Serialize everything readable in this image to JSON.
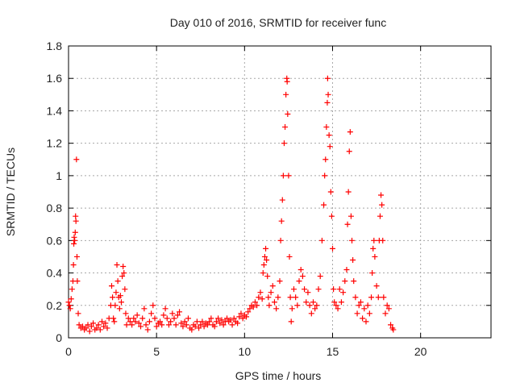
{
  "chart_data": {
    "type": "scatter",
    "title": "Day 010 of 2016, SRMTID for receiver func",
    "xlabel": "GPS time / hours",
    "ylabel": "SRMTID / TECUs",
    "xlim": [
      0,
      24
    ],
    "ylim": [
      0,
      1.8
    ],
    "xticks": [
      0,
      5,
      10,
      15,
      20
    ],
    "xtick_labels": [
      "0",
      "5",
      "10",
      "15",
      "20"
    ],
    "yticks": [
      0,
      0.2,
      0.4,
      0.6,
      0.8,
      1,
      1.2,
      1.4,
      1.6,
      1.8
    ],
    "ytick_labels": [
      "0",
      "0.2",
      "0.4",
      "0.6",
      "0.8",
      "1",
      "1.2",
      "1.4",
      "1.6",
      "1.8"
    ],
    "grid": true,
    "marker": "+",
    "color": "#ff0000",
    "series": [
      {
        "name": "SRMTID",
        "points": [
          [
            0.0,
            0.22
          ],
          [
            0.05,
            0.2
          ],
          [
            0.1,
            0.18
          ],
          [
            0.15,
            0.24
          ],
          [
            0.2,
            0.3
          ],
          [
            0.25,
            0.35
          ],
          [
            0.28,
            0.45
          ],
          [
            0.3,
            0.58
          ],
          [
            0.32,
            0.62
          ],
          [
            0.35,
            0.6
          ],
          [
            0.38,
            0.65
          ],
          [
            0.4,
            0.75
          ],
          [
            0.42,
            0.72
          ],
          [
            0.45,
            1.1
          ],
          [
            0.48,
            0.5
          ],
          [
            0.5,
            0.35
          ],
          [
            0.55,
            0.15
          ],
          [
            0.6,
            0.08
          ],
          [
            0.7,
            0.06
          ],
          [
            0.8,
            0.07
          ],
          [
            0.9,
            0.05
          ],
          [
            1.0,
            0.06
          ],
          [
            1.1,
            0.08
          ],
          [
            1.2,
            0.04
          ],
          [
            1.3,
            0.07
          ],
          [
            1.4,
            0.09
          ],
          [
            1.5,
            0.05
          ],
          [
            1.6,
            0.06
          ],
          [
            1.7,
            0.08
          ],
          [
            1.8,
            0.05
          ],
          [
            1.9,
            0.1
          ],
          [
            2.0,
            0.07
          ],
          [
            2.1,
            0.09
          ],
          [
            2.2,
            0.06
          ],
          [
            2.3,
            0.12
          ],
          [
            2.4,
            0.2
          ],
          [
            2.45,
            0.32
          ],
          [
            2.5,
            0.25
          ],
          [
            2.55,
            0.12
          ],
          [
            2.6,
            0.1
          ],
          [
            2.65,
            0.2
          ],
          [
            2.7,
            0.28
          ],
          [
            2.75,
            0.45
          ],
          [
            2.8,
            0.35
          ],
          [
            2.85,
            0.25
          ],
          [
            2.9,
            0.18
          ],
          [
            2.95,
            0.26
          ],
          [
            3.0,
            0.22
          ],
          [
            3.05,
            0.38
          ],
          [
            3.1,
            0.44
          ],
          [
            3.15,
            0.4
          ],
          [
            3.2,
            0.3
          ],
          [
            3.25,
            0.15
          ],
          [
            3.3,
            0.08
          ],
          [
            3.4,
            0.12
          ],
          [
            3.5,
            0.1
          ],
          [
            3.6,
            0.08
          ],
          [
            3.7,
            0.12
          ],
          [
            3.8,
            0.1
          ],
          [
            3.9,
            0.14
          ],
          [
            4.0,
            0.09
          ],
          [
            4.1,
            0.07
          ],
          [
            4.2,
            0.12
          ],
          [
            4.3,
            0.18
          ],
          [
            4.4,
            0.08
          ],
          [
            4.5,
            0.05
          ],
          [
            4.6,
            0.1
          ],
          [
            4.7,
            0.15
          ],
          [
            4.8,
            0.2
          ],
          [
            4.9,
            0.12
          ],
          [
            5.0,
            0.07
          ],
          [
            5.1,
            0.09
          ],
          [
            5.2,
            0.1
          ],
          [
            5.3,
            0.08
          ],
          [
            5.4,
            0.14
          ],
          [
            5.5,
            0.18
          ],
          [
            5.6,
            0.12
          ],
          [
            5.7,
            0.08
          ],
          [
            5.8,
            0.1
          ],
          [
            5.9,
            0.15
          ],
          [
            6.0,
            0.12
          ],
          [
            6.1,
            0.08
          ],
          [
            6.2,
            0.14
          ],
          [
            6.3,
            0.16
          ],
          [
            6.4,
            0.09
          ],
          [
            6.5,
            0.07
          ],
          [
            6.6,
            0.1
          ],
          [
            6.7,
            0.08
          ],
          [
            6.8,
            0.12
          ],
          [
            6.9,
            0.06
          ],
          [
            7.0,
            0.05
          ],
          [
            7.1,
            0.08
          ],
          [
            7.2,
            0.07
          ],
          [
            7.3,
            0.1
          ],
          [
            7.4,
            0.06
          ],
          [
            7.5,
            0.08
          ],
          [
            7.6,
            0.1
          ],
          [
            7.7,
            0.07
          ],
          [
            7.8,
            0.09
          ],
          [
            7.9,
            0.08
          ],
          [
            8.0,
            0.1
          ],
          [
            8.1,
            0.12
          ],
          [
            8.2,
            0.08
          ],
          [
            8.3,
            0.07
          ],
          [
            8.4,
            0.1
          ],
          [
            8.5,
            0.12
          ],
          [
            8.6,
            0.09
          ],
          [
            8.7,
            0.11
          ],
          [
            8.8,
            0.08
          ],
          [
            8.9,
            0.1
          ],
          [
            9.0,
            0.12
          ],
          [
            9.1,
            0.1
          ],
          [
            9.2,
            0.11
          ],
          [
            9.3,
            0.08
          ],
          [
            9.4,
            0.12
          ],
          [
            9.5,
            0.1
          ],
          [
            9.6,
            0.09
          ],
          [
            9.7,
            0.13
          ],
          [
            9.8,
            0.15
          ],
          [
            9.9,
            0.12
          ],
          [
            10.0,
            0.14
          ],
          [
            10.1,
            0.13
          ],
          [
            10.2,
            0.16
          ],
          [
            10.3,
            0.18
          ],
          [
            10.4,
            0.2
          ],
          [
            10.5,
            0.19
          ],
          [
            10.6,
            0.22
          ],
          [
            10.7,
            0.2
          ],
          [
            10.8,
            0.25
          ],
          [
            10.9,
            0.28
          ],
          [
            11.0,
            0.24
          ],
          [
            11.05,
            0.4
          ],
          [
            11.1,
            0.45
          ],
          [
            11.15,
            0.5
          ],
          [
            11.2,
            0.55
          ],
          [
            11.25,
            0.48
          ],
          [
            11.3,
            0.38
          ],
          [
            11.35,
            0.25
          ],
          [
            11.4,
            0.2
          ],
          [
            11.5,
            0.28
          ],
          [
            11.6,
            0.32
          ],
          [
            11.7,
            0.22
          ],
          [
            11.8,
            0.18
          ],
          [
            11.9,
            0.25
          ],
          [
            12.0,
            0.35
          ],
          [
            12.05,
            0.6
          ],
          [
            12.1,
            0.72
          ],
          [
            12.15,
            0.85
          ],
          [
            12.2,
            1.0
          ],
          [
            12.25,
            1.2
          ],
          [
            12.3,
            1.3
          ],
          [
            12.35,
            1.5
          ],
          [
            12.4,
            1.6
          ],
          [
            12.42,
            1.58
          ],
          [
            12.45,
            1.38
          ],
          [
            12.5,
            1.0
          ],
          [
            12.55,
            0.5
          ],
          [
            12.6,
            0.25
          ],
          [
            12.65,
            0.1
          ],
          [
            12.7,
            0.18
          ],
          [
            12.8,
            0.3
          ],
          [
            12.9,
            0.25
          ],
          [
            13.0,
            0.2
          ],
          [
            13.1,
            0.35
          ],
          [
            13.2,
            0.42
          ],
          [
            13.3,
            0.38
          ],
          [
            13.4,
            0.3
          ],
          [
            13.5,
            0.22
          ],
          [
            13.6,
            0.28
          ],
          [
            13.7,
            0.2
          ],
          [
            13.8,
            0.15
          ],
          [
            13.9,
            0.22
          ],
          [
            14.0,
            0.18
          ],
          [
            14.1,
            0.2
          ],
          [
            14.2,
            0.3
          ],
          [
            14.3,
            0.38
          ],
          [
            14.4,
            0.6
          ],
          [
            14.5,
            0.82
          ],
          [
            14.55,
            1.0
          ],
          [
            14.6,
            1.1
          ],
          [
            14.65,
            1.3
          ],
          [
            14.7,
            1.45
          ],
          [
            14.72,
            1.6
          ],
          [
            14.75,
            1.5
          ],
          [
            14.8,
            1.25
          ],
          [
            14.85,
            1.18
          ],
          [
            14.9,
            0.9
          ],
          [
            14.95,
            0.75
          ],
          [
            15.0,
            0.55
          ],
          [
            15.05,
            0.3
          ],
          [
            15.1,
            0.22
          ],
          [
            15.2,
            0.2
          ],
          [
            15.3,
            0.18
          ],
          [
            15.4,
            0.3
          ],
          [
            15.5,
            0.22
          ],
          [
            15.6,
            0.28
          ],
          [
            15.7,
            0.35
          ],
          [
            15.8,
            0.42
          ],
          [
            15.85,
            0.7
          ],
          [
            15.9,
            0.9
          ],
          [
            15.95,
            1.15
          ],
          [
            16.0,
            1.27
          ],
          [
            16.05,
            0.75
          ],
          [
            16.1,
            0.6
          ],
          [
            16.15,
            0.48
          ],
          [
            16.2,
            0.35
          ],
          [
            16.3,
            0.25
          ],
          [
            16.4,
            0.15
          ],
          [
            16.5,
            0.2
          ],
          [
            16.6,
            0.22
          ],
          [
            16.7,
            0.12
          ],
          [
            16.8,
            0.18
          ],
          [
            16.9,
            0.1
          ],
          [
            17.0,
            0.2
          ],
          [
            17.1,
            0.15
          ],
          [
            17.2,
            0.25
          ],
          [
            17.25,
            0.4
          ],
          [
            17.3,
            0.55
          ],
          [
            17.35,
            0.6
          ],
          [
            17.4,
            0.5
          ],
          [
            17.5,
            0.32
          ],
          [
            17.6,
            0.25
          ],
          [
            17.65,
            0.6
          ],
          [
            17.7,
            0.75
          ],
          [
            17.75,
            0.88
          ],
          [
            17.8,
            0.82
          ],
          [
            17.85,
            0.6
          ],
          [
            17.9,
            0.25
          ],
          [
            18.0,
            0.15
          ],
          [
            18.1,
            0.2
          ],
          [
            18.2,
            0.18
          ],
          [
            18.3,
            0.08
          ],
          [
            18.4,
            0.06
          ],
          [
            18.45,
            0.05
          ]
        ]
      }
    ]
  }
}
